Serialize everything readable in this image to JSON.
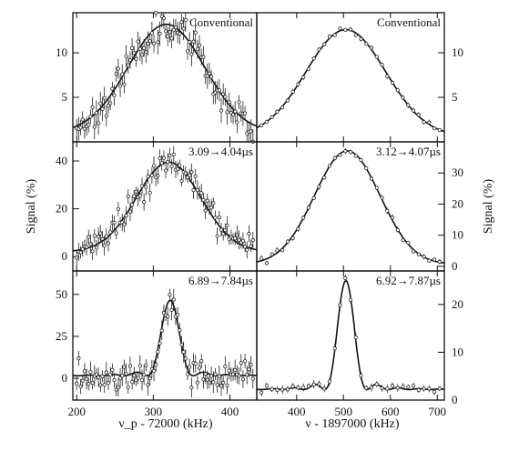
{
  "chart_data": {
    "type": "scatter",
    "figure_note": "",
    "left_xlabel": "ν_p - 72000 (kHz)",
    "right_xlabel": "ν - 1897000 (kHz)",
    "ylabel": "Signal (%)",
    "left_xticks": [
      200,
      300,
      400
    ],
    "right_xticks": [
      400,
      500,
      600,
      700
    ],
    "left_xlim": [
      195,
      435
    ],
    "right_xlim": [
      315,
      715
    ],
    "panels": [
      {
        "id": "left-top",
        "column": "left",
        "row": 0,
        "label": "Conventional",
        "xlim": [
          195,
          435
        ],
        "ylim": [
          0,
          14.5
        ],
        "yticks": [
          5,
          10
        ],
        "fit": {
          "kind": "gauss",
          "base": 1.0,
          "amp": 12.2,
          "center": 317,
          "sigma": 50
        },
        "points": {
          "n": 90,
          "seed": 11,
          "x_start": 200,
          "x_end": 430,
          "noise": 0.9,
          "err": 1.1
        }
      },
      {
        "id": "left-mid",
        "column": "left",
        "row": 1,
        "label": "3.09→4.04µs",
        "xlim": [
          195,
          435
        ],
        "ylim": [
          -6,
          48
        ],
        "yticks": [
          0,
          20,
          40
        ],
        "fit": {
          "kind": "gauss",
          "base": 2.0,
          "amp": 37.5,
          "center": 320,
          "sigma": 42
        },
        "points": {
          "n": 90,
          "seed": 23,
          "x_start": 200,
          "x_end": 430,
          "noise": 2.8,
          "err": 3.2
        }
      },
      {
        "id": "left-bot",
        "column": "left",
        "row": 2,
        "label": "6.89→7.84µs",
        "xlim": [
          195,
          435
        ],
        "ylim": [
          -13,
          64
        ],
        "yticks": [
          0,
          25,
          50
        ],
        "fit": {
          "kind": "sinc2",
          "base": 1.5,
          "amp": 45,
          "center": 322,
          "width": 30
        },
        "points": {
          "n": 90,
          "seed": 37,
          "x_start": 200,
          "x_end": 430,
          "noise": 4.2,
          "err": 5.0
        }
      },
      {
        "id": "right-top",
        "column": "right",
        "row": 0,
        "label": "Conventional",
        "xlim": [
          315,
          715
        ],
        "ylim": [
          0,
          14.5
        ],
        "yticks": [
          5,
          10
        ],
        "fit": {
          "kind": "gauss",
          "base": 0.6,
          "amp": 12.0,
          "center": 505,
          "sigma": 85
        },
        "points": {
          "n": 35,
          "seed": 5,
          "x_start": 325,
          "x_end": 705,
          "noise": 0.15,
          "err": 0.25
        }
      },
      {
        "id": "right-mid",
        "column": "right",
        "row": 1,
        "label": "3.12→4.07µs",
        "xlim": [
          315,
          715
        ],
        "ylim": [
          -1.5,
          40
        ],
        "yticks": [
          0,
          10,
          20,
          30
        ],
        "fit": {
          "kind": "gauss",
          "base": 0.6,
          "amp": 36.5,
          "center": 508,
          "sigma": 70
        },
        "points": {
          "n": 35,
          "seed": 9,
          "x_start": 325,
          "x_end": 705,
          "noise": 0.5,
          "err": 0.8
        }
      },
      {
        "id": "right-bot",
        "column": "right",
        "row": 2,
        "label": "6.92→7.87µs",
        "xlim": [
          315,
          715
        ],
        "ylim": [
          0,
          27
        ],
        "yticks": [
          0,
          10,
          20
        ],
        "fit": {
          "kind": "sinc2",
          "base": 2.2,
          "amp": 22.8,
          "center": 505,
          "width": 45
        },
        "points": {
          "n": 35,
          "seed": 13,
          "x_start": 325,
          "x_end": 705,
          "noise": 0.4,
          "err": 0.7
        }
      }
    ]
  }
}
